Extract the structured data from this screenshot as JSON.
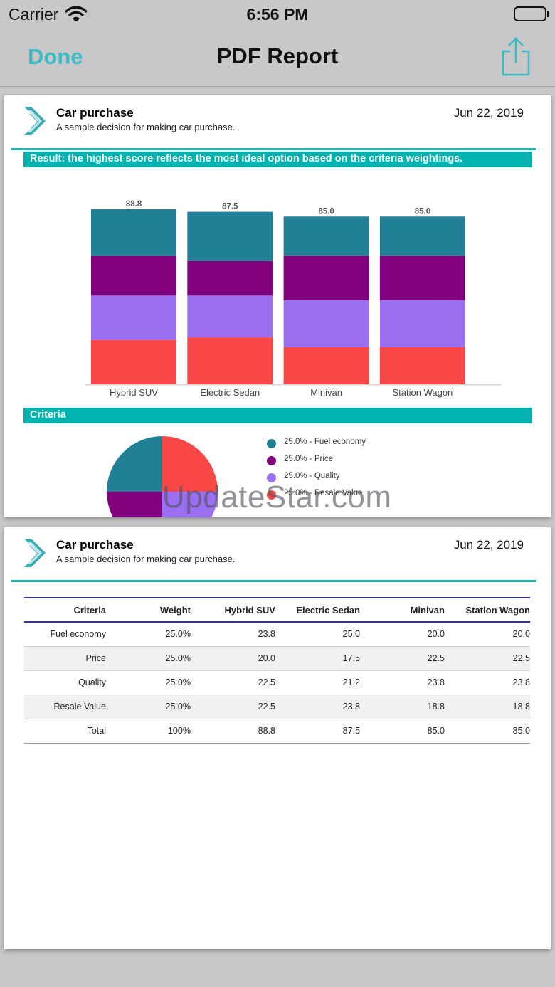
{
  "status_bar": {
    "carrier": "Carrier",
    "time": "6:56 PM"
  },
  "nav": {
    "done_label": "Done",
    "title": "PDF Report"
  },
  "report": {
    "title": "Car purchase",
    "subtitle": "A sample decision for making car purchase.",
    "date": "Jun 22, 2019"
  },
  "result_banner": "Result: the highest score reflects the most ideal option based on the criteria weightings.",
  "criteria_banner": "Criteria",
  "colors": {
    "accent": "#3bbcc4",
    "teal_bar": "#00b3b0",
    "fuel_economy": "#218096",
    "price": "#80007e",
    "quality": "#9a6ff2",
    "resale_value": "#f94747"
  },
  "chart_data": {
    "type": "bar",
    "stacked": true,
    "categories": [
      "Hybrid SUV",
      "Electric Sedan",
      "Minivan",
      "Station Wagon"
    ],
    "totals": [
      "88.8",
      "87.5",
      "85.0",
      "85.0"
    ],
    "series": [
      {
        "color": "#f94747",
        "values": [
          22.5,
          23.8,
          18.8,
          18.8
        ]
      },
      {
        "color": "#9a6ff2",
        "values": [
          22.5,
          21.2,
          23.8,
          23.8
        ]
      },
      {
        "color": "#80007e",
        "values": [
          20.0,
          17.5,
          22.5,
          22.5
        ]
      },
      {
        "color": "#218096",
        "values": [
          23.8,
          25.0,
          20.0,
          20.0
        ]
      }
    ],
    "grid": false,
    "legend": "none"
  },
  "pie_data": {
    "type": "pie",
    "slices": [
      {
        "label": "25.0% - Fuel economy",
        "value": 25.0,
        "color": "#218096"
      },
      {
        "label": "25.0% - Price",
        "value": 25.0,
        "color": "#80007e"
      },
      {
        "label": "25.0% - Quality",
        "value": 25.0,
        "color": "#9a6ff2"
      },
      {
        "label": "25.0% - Resale Value",
        "value": 25.0,
        "color": "#f94747"
      }
    ]
  },
  "watermark": "UpdateStar.com",
  "table": {
    "headers": [
      "Criteria",
      "Weight",
      "Hybrid SUV",
      "Electric Sedan",
      "Minivan",
      "Station Wagon"
    ],
    "rows": [
      [
        "Fuel economy",
        "25.0%",
        "23.8",
        "25.0",
        "20.0",
        "20.0"
      ],
      [
        "Price",
        "25.0%",
        "20.0",
        "17.5",
        "22.5",
        "22.5"
      ],
      [
        "Quality",
        "25.0%",
        "22.5",
        "21.2",
        "23.8",
        "23.8"
      ],
      [
        "Resale Value",
        "25.0%",
        "22.5",
        "23.8",
        "18.8",
        "18.8"
      ],
      [
        "Total",
        "100%",
        "88.8",
        "87.5",
        "85.0",
        "85.0"
      ]
    ]
  }
}
